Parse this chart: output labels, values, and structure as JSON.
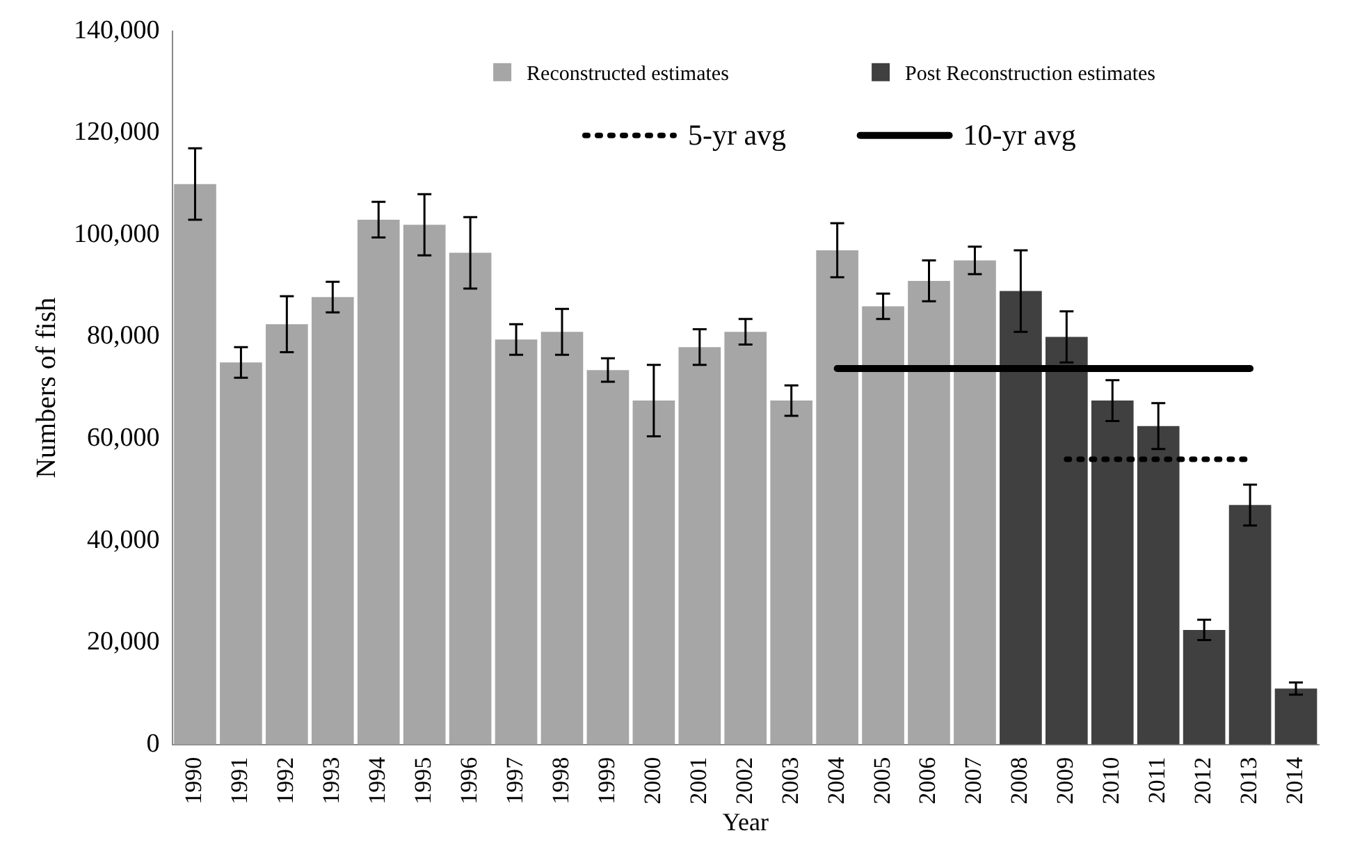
{
  "chart_data": {
    "type": "bar",
    "xlabel": "Year",
    "ylabel": "Numbers of fish",
    "categories": [
      "1990",
      "1991",
      "1992",
      "1993",
      "1994",
      "1995",
      "1996",
      "1997",
      "1998",
      "1999",
      "2000",
      "2001",
      "2002",
      "2003",
      "2004",
      "2005",
      "2006",
      "2007",
      "2008",
      "2009",
      "2010",
      "2011",
      "2012",
      "2013",
      "2014"
    ],
    "series": [
      {
        "name": "Reconstructed estimates",
        "color": "#a6a6a6",
        "values": [
          110000,
          75000,
          82500,
          87800,
          103000,
          102000,
          96500,
          79500,
          81000,
          73500,
          67500,
          78000,
          81000,
          67500,
          97000,
          86000,
          91000,
          95000,
          null,
          null,
          null,
          null,
          null,
          null,
          null
        ],
        "errors": [
          7000,
          3000,
          5500,
          3000,
          3500,
          6000,
          7000,
          3000,
          4500,
          2300,
          7000,
          3500,
          2500,
          3000,
          5300,
          2500,
          4000,
          2700,
          null,
          null,
          null,
          null,
          null,
          null,
          null
        ]
      },
      {
        "name": "Post Reconstruction estimates",
        "color": "#404040",
        "values": [
          null,
          null,
          null,
          null,
          null,
          null,
          null,
          null,
          null,
          null,
          null,
          null,
          null,
          null,
          null,
          null,
          null,
          null,
          89000,
          80000,
          67500,
          62500,
          22500,
          47000,
          11000
        ],
        "errors": [
          null,
          null,
          null,
          null,
          null,
          null,
          null,
          null,
          null,
          null,
          null,
          null,
          null,
          null,
          null,
          null,
          null,
          null,
          8000,
          5000,
          4000,
          4500,
          2000,
          4000,
          1200
        ]
      },
      {
        "name": "5-yr avg",
        "type": "line",
        "color": "#000000",
        "line_style": "dotted",
        "values": [
          null,
          null,
          null,
          null,
          null,
          null,
          null,
          null,
          null,
          null,
          null,
          null,
          null,
          null,
          null,
          null,
          null,
          null,
          null,
          56000,
          56000,
          56000,
          56000,
          56000,
          null
        ]
      },
      {
        "name": "10-yr avg",
        "type": "line",
        "color": "#000000",
        "line_style": "solid",
        "values": [
          null,
          null,
          null,
          null,
          null,
          null,
          null,
          null,
          null,
          null,
          null,
          null,
          null,
          null,
          73800,
          73800,
          73800,
          73800,
          73800,
          73800,
          73800,
          73800,
          73800,
          73800,
          null
        ]
      }
    ],
    "ylim": [
      0,
      140000
    ],
    "yticks": [
      0,
      {
        "value": 20000,
        "label": "20,000"
      },
      {
        "value": 40000,
        "label": "40,000"
      },
      {
        "value": 60000,
        "label": "60,000"
      },
      {
        "value": 80000,
        "label": "80,000"
      },
      {
        "value": 100000,
        "label": "100,000"
      },
      {
        "value": 120000,
        "label": "120,000"
      },
      {
        "value": 140000,
        "label": "140,000"
      }
    ],
    "grid": false,
    "legend": "top",
    "marker": "none"
  }
}
